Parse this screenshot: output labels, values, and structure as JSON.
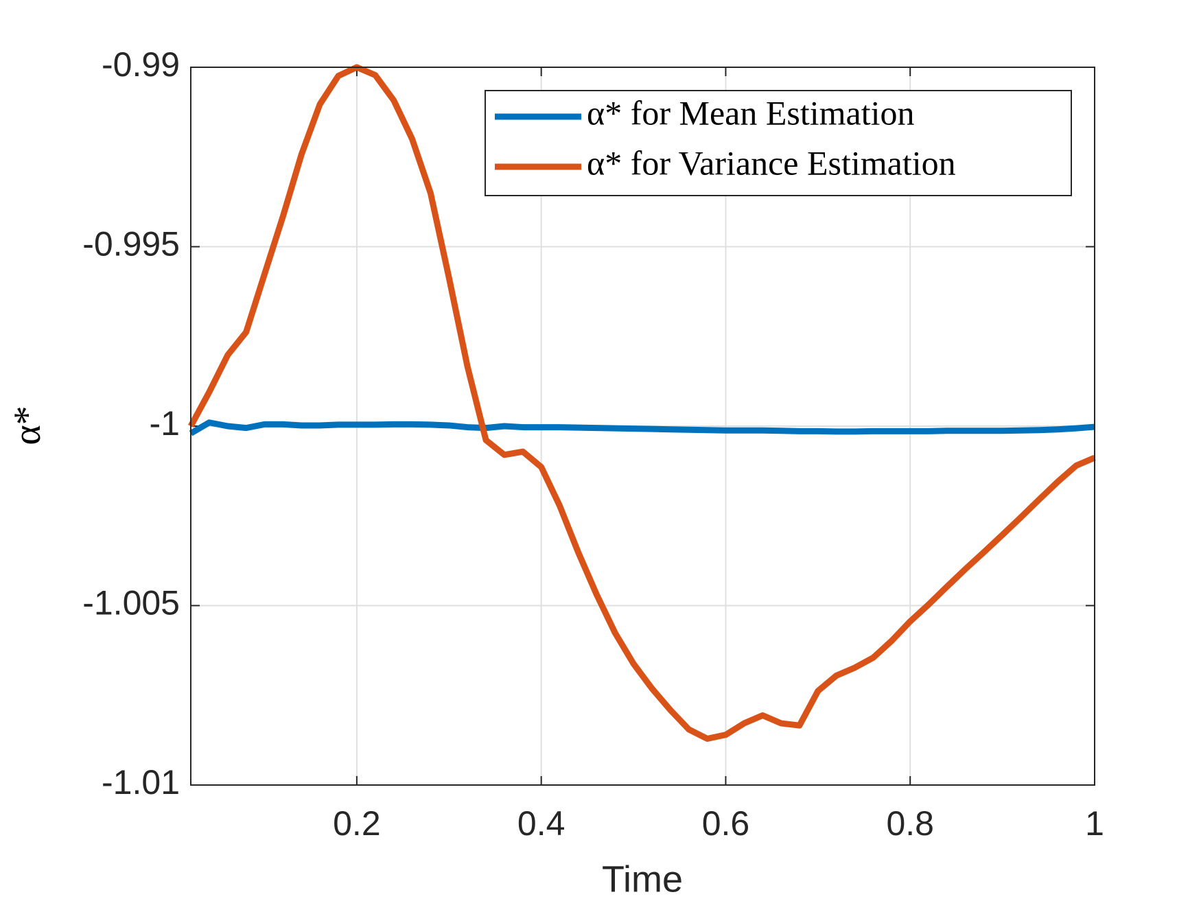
{
  "chart_data": {
    "type": "line",
    "x": [
      0.02,
      0.04,
      0.06,
      0.08,
      0.1,
      0.12,
      0.14,
      0.16,
      0.18,
      0.2,
      0.22,
      0.24,
      0.26,
      0.28,
      0.3,
      0.32,
      0.34,
      0.36,
      0.38,
      0.4,
      0.42,
      0.44,
      0.46,
      0.48,
      0.5,
      0.52,
      0.54,
      0.56,
      0.58,
      0.6,
      0.62,
      0.64,
      0.66,
      0.68,
      0.7,
      0.72,
      0.74,
      0.76,
      0.78,
      0.8,
      0.82,
      0.84,
      0.86,
      0.88,
      0.9,
      0.92,
      0.94,
      0.96,
      0.98,
      1.0
    ],
    "series": [
      {
        "name": "α* for Mean Estimation",
        "color": "#0072bd",
        "values": [
          -1.0002,
          -0.9999,
          -1.0,
          -1.00005,
          -0.99995,
          -0.99995,
          -0.99998,
          -0.99998,
          -0.99996,
          -0.99996,
          -0.99996,
          -0.99995,
          -0.99995,
          -0.99996,
          -0.99998,
          -1.00003,
          -1.00005,
          -1.0,
          -1.00003,
          -1.00003,
          -1.00003,
          -1.00004,
          -1.00005,
          -1.00006,
          -1.00007,
          -1.00008,
          -1.00009,
          -1.0001,
          -1.00011,
          -1.00012,
          -1.00012,
          -1.00012,
          -1.00013,
          -1.00014,
          -1.00014,
          -1.00015,
          -1.00015,
          -1.00014,
          -1.00014,
          -1.00014,
          -1.00014,
          -1.00013,
          -1.00013,
          -1.00013,
          -1.00013,
          -1.00012,
          -1.00011,
          -1.00009,
          -1.00006,
          -1.00002
        ]
      },
      {
        "name": "α* for Variance Estimation",
        "color": "#d95319",
        "values": [
          -1.0,
          -0.99905,
          -0.99802,
          -0.99738,
          -0.99576,
          -0.99415,
          -0.99243,
          -0.99103,
          -0.99024,
          -0.99,
          -0.99022,
          -0.99092,
          -0.992,
          -0.99351,
          -0.99587,
          -0.99834,
          -1.00039,
          -1.0008,
          -1.00071,
          -1.00114,
          -1.00222,
          -1.00351,
          -1.00469,
          -1.00576,
          -1.00662,
          -1.00731,
          -1.00791,
          -1.00845,
          -1.00871,
          -1.0086,
          -1.00828,
          -1.00806,
          -1.00828,
          -1.00834,
          -1.00738,
          -1.00695,
          -1.00673,
          -1.00645,
          -1.00598,
          -1.00544,
          -1.00497,
          -1.00447,
          -1.00398,
          -1.00351,
          -1.00303,
          -1.00254,
          -1.00204,
          -1.00155,
          -1.0011,
          -1.00088
        ]
      }
    ],
    "xlabel": "Time",
    "ylabel": "α*",
    "xlim": [
      0.02,
      1
    ],
    "xticks": [
      0.2,
      0.4,
      0.6,
      0.8,
      1
    ],
    "ylim": [
      -1.01,
      -0.99
    ],
    "yticks": [
      -1.01,
      -1.005,
      -1,
      -0.995,
      -0.99
    ],
    "grid": true,
    "legend": "upper right"
  }
}
